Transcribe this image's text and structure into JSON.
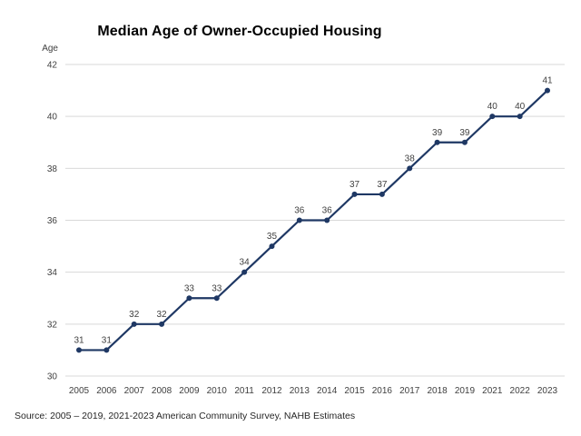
{
  "source_note": "Source: 2005 – 2019, 2021-2023 American Community Survey, NAHB Estimates",
  "colors": {
    "line": "#1F3864",
    "marker": "#1F3864",
    "gridline": "#D9D9D9",
    "tick_text": "#404040",
    "title_text": "#000000"
  },
  "chart_data": {
    "type": "line",
    "title": "Median Age of Owner-Occupied Housing",
    "xlabel": "",
    "ylabel": "Age",
    "categories": [
      "2005",
      "2006",
      "2007",
      "2008",
      "2009",
      "2010",
      "2011",
      "2012",
      "2013",
      "2014",
      "2015",
      "2016",
      "2017",
      "2018",
      "2019",
      "2021",
      "2022",
      "2023"
    ],
    "values": [
      31,
      31,
      32,
      32,
      33,
      33,
      34,
      35,
      36,
      36,
      37,
      37,
      38,
      39,
      39,
      40,
      40,
      41
    ],
    "ylim": [
      30,
      42
    ],
    "ytick_step": 2,
    "grid": true,
    "legend_position": "none",
    "data_labels": true
  }
}
